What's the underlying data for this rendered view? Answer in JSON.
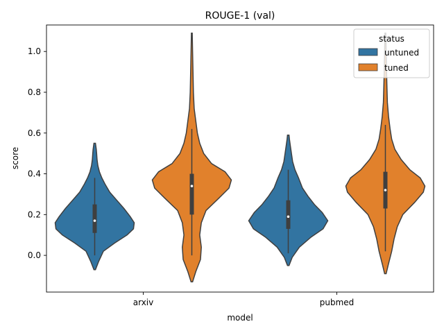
{
  "chart_data": {
    "type": "violin",
    "title": "ROUGE-1 (val)",
    "xlabel": "model",
    "ylabel": "score",
    "categories": [
      "arxiv",
      "pubmed"
    ],
    "ylim": [
      -0.18,
      1.13
    ],
    "yticks": [
      0.0,
      0.2,
      0.4,
      0.6,
      0.8,
      1.0
    ],
    "ytick_labels": [
      "0.0",
      "0.2",
      "0.4",
      "0.6",
      "0.8",
      "1.0"
    ],
    "grid": false,
    "legend": {
      "title": "status",
      "placement": "top-right"
    },
    "series": [
      {
        "name": "untuned",
        "color": "#3274a1",
        "violins": [
          {
            "category": "arxiv",
            "min": -0.07,
            "max": 0.55,
            "q1": 0.11,
            "median": 0.17,
            "q3": 0.25,
            "whisker_low": 0.0,
            "whisker_high": 0.38,
            "density": [
              [
                -0.07,
                0.02
              ],
              [
                -0.03,
                0.1
              ],
              [
                0.02,
                0.22
              ],
              [
                0.06,
                0.5
              ],
              [
                0.1,
                0.82
              ],
              [
                0.13,
                0.98
              ],
              [
                0.16,
                1.0
              ],
              [
                0.19,
                0.9
              ],
              [
                0.23,
                0.74
              ],
              [
                0.27,
                0.56
              ],
              [
                0.31,
                0.38
              ],
              [
                0.35,
                0.26
              ],
              [
                0.38,
                0.18
              ],
              [
                0.41,
                0.12
              ],
              [
                0.44,
                0.08
              ],
              [
                0.47,
                0.06
              ],
              [
                0.5,
                0.05
              ],
              [
                0.52,
                0.04
              ],
              [
                0.55,
                0.02
              ]
            ]
          },
          {
            "category": "pubmed",
            "min": -0.05,
            "max": 0.59,
            "q1": 0.13,
            "median": 0.19,
            "q3": 0.27,
            "whisker_low": 0.01,
            "whisker_high": 0.42,
            "density": [
              [
                -0.05,
                0.02
              ],
              [
                -0.01,
                0.1
              ],
              [
                0.04,
                0.28
              ],
              [
                0.09,
                0.58
              ],
              [
                0.13,
                0.88
              ],
              [
                0.17,
                1.0
              ],
              [
                0.21,
                0.86
              ],
              [
                0.25,
                0.66
              ],
              [
                0.29,
                0.5
              ],
              [
                0.33,
                0.36
              ],
              [
                0.38,
                0.26
              ],
              [
                0.42,
                0.17
              ],
              [
                0.46,
                0.11
              ],
              [
                0.5,
                0.08
              ],
              [
                0.54,
                0.05
              ],
              [
                0.57,
                0.03
              ],
              [
                0.59,
                0.02
              ]
            ]
          }
        ]
      },
      {
        "name": "tuned",
        "color": "#e1812c",
        "violins": [
          {
            "category": "arxiv",
            "min": -0.13,
            "max": 1.09,
            "q1": 0.2,
            "median": 0.34,
            "q3": 0.4,
            "whisker_low": 0.0,
            "whisker_high": 0.62,
            "density": [
              [
                -0.13,
                0.02
              ],
              [
                -0.08,
                0.1
              ],
              [
                -0.02,
                0.22
              ],
              [
                0.04,
                0.24
              ],
              [
                0.1,
                0.2
              ],
              [
                0.16,
                0.24
              ],
              [
                0.22,
                0.36
              ],
              [
                0.28,
                0.68
              ],
              [
                0.33,
                0.94
              ],
              [
                0.37,
                1.0
              ],
              [
                0.41,
                0.84
              ],
              [
                0.45,
                0.5
              ],
              [
                0.5,
                0.3
              ],
              [
                0.55,
                0.2
              ],
              [
                0.6,
                0.14
              ],
              [
                0.66,
                0.1
              ],
              [
                0.72,
                0.06
              ],
              [
                0.8,
                0.04
              ],
              [
                0.9,
                0.03
              ],
              [
                1.0,
                0.02
              ],
              [
                1.09,
                0.01
              ]
            ]
          },
          {
            "category": "pubmed",
            "min": -0.09,
            "max": 1.09,
            "q1": 0.23,
            "median": 0.32,
            "q3": 0.41,
            "whisker_low": 0.02,
            "whisker_high": 0.64,
            "density": [
              [
                -0.09,
                0.02
              ],
              [
                -0.04,
                0.08
              ],
              [
                0.02,
                0.16
              ],
              [
                0.08,
                0.22
              ],
              [
                0.14,
                0.3
              ],
              [
                0.2,
                0.44
              ],
              [
                0.26,
                0.74
              ],
              [
                0.31,
                0.96
              ],
              [
                0.34,
                1.0
              ],
              [
                0.38,
                0.88
              ],
              [
                0.42,
                0.62
              ],
              [
                0.47,
                0.4
              ],
              [
                0.52,
                0.24
              ],
              [
                0.57,
                0.16
              ],
              [
                0.62,
                0.12
              ],
              [
                0.68,
                0.08
              ],
              [
                0.75,
                0.05
              ],
              [
                0.82,
                0.04
              ],
              [
                0.9,
                0.03
              ],
              [
                1.0,
                0.02
              ],
              [
                1.09,
                0.01
              ]
            ]
          }
        ]
      }
    ]
  }
}
